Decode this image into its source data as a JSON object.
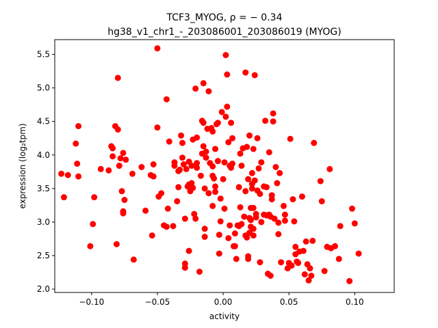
{
  "chart_data": {
    "type": "scatter",
    "title_line1": "TCF3_MYOG, ρ = − 0.34",
    "title_line2": "hg38_v1_chr1_-_203086001_203086019 (MYOG)",
    "xlabel": "activity",
    "ylabel": "expression (log₂tpm)",
    "xlim": [
      -0.128,
      0.13
    ],
    "ylim": [
      1.95,
      5.72
    ],
    "xticks": [
      -0.1,
      -0.05,
      0.0,
      0.05,
      0.1
    ],
    "xtick_labels": [
      "−0.10",
      "−0.05",
      "0.00",
      "0.05",
      "0.10"
    ],
    "yticks": [
      2.0,
      2.5,
      3.0,
      3.5,
      4.0,
      4.5,
      5.0,
      5.5
    ],
    "ytick_labels": [
      "2.0",
      "2.5",
      "3.0",
      "3.5",
      "4.0",
      "4.5",
      "5.0",
      "5.5"
    ],
    "marker_color": "#ff0000",
    "points": [
      [
        -0.123,
        3.72
      ],
      [
        -0.121,
        3.37
      ],
      [
        -0.118,
        3.7
      ],
      [
        -0.112,
        4.17
      ],
      [
        -0.111,
        3.87
      ],
      [
        -0.11,
        4.43
      ],
      [
        -0.11,
        3.68
      ],
      [
        -0.101,
        2.64
      ],
      [
        -0.099,
        2.97
      ],
      [
        -0.098,
        3.37
      ],
      [
        -0.093,
        3.79
      ],
      [
        -0.087,
        3.77
      ],
      [
        -0.085,
        4.13
      ],
      [
        -0.084,
        4.1
      ],
      [
        -0.084,
        3.98
      ],
      [
        -0.082,
        4.43
      ],
      [
        -0.081,
        2.67
      ],
      [
        -0.08,
        5.15
      ],
      [
        -0.08,
        4.38
      ],
      [
        -0.079,
        3.84
      ],
      [
        -0.078,
        3.95
      ],
      [
        -0.077,
        3.46
      ],
      [
        -0.076,
        4.03
      ],
      [
        -0.076,
        3.16
      ],
      [
        -0.076,
        3.13
      ],
      [
        -0.075,
        3.33
      ],
      [
        -0.074,
        3.93
      ],
      [
        -0.069,
        3.72
      ],
      [
        -0.068,
        2.44
      ],
      [
        -0.062,
        3.82
      ],
      [
        -0.059,
        3.17
      ],
      [
        -0.055,
        3.7
      ],
      [
        -0.054,
        2.8
      ],
      [
        -0.053,
        3.68
      ],
      [
        -0.053,
        3.86
      ],
      [
        -0.05,
        5.59
      ],
      [
        -0.05,
        4.41
      ],
      [
        -0.049,
        3.38
      ],
      [
        -0.047,
        3.43
      ],
      [
        -0.045,
        2.95
      ],
      [
        -0.043,
        4.83
      ],
      [
        -0.043,
        2.93
      ],
      [
        -0.042,
        3.2
      ],
      [
        -0.041,
        4.2
      ],
      [
        -0.038,
        2.94
      ],
      [
        -0.037,
        3.84
      ],
      [
        -0.037,
        3.89
      ],
      [
        -0.035,
        3.31
      ],
      [
        -0.034,
        3.76
      ],
      [
        -0.034,
        3.52
      ],
      [
        -0.033,
        3.78
      ],
      [
        -0.032,
        4.29
      ],
      [
        -0.031,
        4.18
      ],
      [
        -0.031,
        3.96
      ],
      [
        -0.03,
        3.86
      ],
      [
        -0.029,
        2.32
      ],
      [
        -0.029,
        2.38
      ],
      [
        -0.029,
        3.05
      ],
      [
        -0.028,
        3.79
      ],
      [
        -0.027,
        3.53
      ],
      [
        -0.026,
        3.9
      ],
      [
        -0.026,
        3.56
      ],
      [
        -0.026,
        2.57
      ],
      [
        -0.025,
        3.46
      ],
      [
        -0.024,
        3.58
      ],
      [
        -0.024,
        3.84
      ],
      [
        -0.023,
        4.23
      ],
      [
        -0.023,
        3.51
      ],
      [
        -0.022,
        3.12
      ],
      [
        -0.021,
        4.99
      ],
      [
        -0.021,
        3.05
      ],
      [
        -0.02,
        3.81
      ],
      [
        -0.02,
        4.26
      ],
      [
        -0.02,
        3.88
      ],
      [
        -0.018,
        2.26
      ],
      [
        -0.017,
        3.69
      ],
      [
        -0.016,
        4.02
      ],
      [
        -0.016,
        4.51
      ],
      [
        -0.015,
        5.07
      ],
      [
        -0.015,
        4.48
      ],
      [
        -0.015,
        4.13
      ],
      [
        -0.014,
        3.5
      ],
      [
        -0.014,
        2.78
      ],
      [
        -0.014,
        2.9
      ],
      [
        -0.013,
        3.96
      ],
      [
        -0.013,
        4.05
      ],
      [
        -0.012,
        4.39
      ],
      [
        -0.011,
        4.95
      ],
      [
        -0.011,
        3.43
      ],
      [
        -0.01,
        3.88
      ],
      [
        -0.009,
        4.4
      ],
      [
        -0.008,
        4.35
      ],
      [
        -0.008,
        3.83
      ],
      [
        -0.008,
        3.69
      ],
      [
        -0.008,
        3.24
      ],
      [
        -0.007,
        3.65
      ],
      [
        -0.006,
        3.45
      ],
      [
        -0.006,
        4.09
      ],
      [
        -0.006,
        3.53
      ],
      [
        -0.005,
        4.46
      ],
      [
        -0.004,
        4.48
      ],
      [
        -0.004,
        3.91
      ],
      [
        -0.003,
        2.53
      ],
      [
        -0.003,
        2.81
      ],
      [
        -0.002,
        3.01
      ],
      [
        -0.002,
        3.35
      ],
      [
        -0.001,
        4.64
      ],
      [
        0.0,
        3.64
      ],
      [
        0.001,
        3.89
      ],
      [
        0.001,
        3.2
      ],
      [
        0.002,
        5.49
      ],
      [
        0.002,
        4.57
      ],
      [
        0.003,
        5.2
      ],
      [
        0.003,
        4.72
      ],
      [
        0.004,
        4.19
      ],
      [
        0.004,
        2.76
      ],
      [
        0.005,
        3.84
      ],
      [
        0.005,
        2.95
      ],
      [
        0.006,
        4.48
      ],
      [
        0.006,
        3.81
      ],
      [
        0.007,
        4.25
      ],
      [
        0.007,
        3.87
      ],
      [
        0.008,
        2.64
      ],
      [
        0.009,
        2.83
      ],
      [
        0.009,
        2.64
      ],
      [
        0.01,
        2.45
      ],
      [
        0.011,
        2.95
      ],
      [
        0.012,
        3.52
      ],
      [
        0.012,
        2.94
      ],
      [
        0.013,
        4.02
      ],
      [
        0.013,
        3.22
      ],
      [
        0.014,
        3.84
      ],
      [
        0.014,
        2.97
      ],
      [
        0.015,
        4.1
      ],
      [
        0.016,
        3.08
      ],
      [
        0.017,
        5.23
      ],
      [
        0.017,
        3.46
      ],
      [
        0.017,
        2.8
      ],
      [
        0.018,
        4.12
      ],
      [
        0.018,
        2.77
      ],
      [
        0.019,
        2.45
      ],
      [
        0.019,
        2.49
      ],
      [
        0.019,
        3.64
      ],
      [
        0.02,
        4.29
      ],
      [
        0.02,
        3.06
      ],
      [
        0.02,
        2.84
      ],
      [
        0.021,
        3.03
      ],
      [
        0.021,
        2.93
      ],
      [
        0.021,
        3.21
      ],
      [
        0.022,
        3.57
      ],
      [
        0.022,
        3.73
      ],
      [
        0.022,
        3.5
      ],
      [
        0.023,
        4.09
      ],
      [
        0.023,
        3.21
      ],
      [
        0.023,
        2.9
      ],
      [
        0.023,
        2.8
      ],
      [
        0.024,
        5.19
      ],
      [
        0.024,
        3.62
      ],
      [
        0.025,
        3.12
      ],
      [
        0.025,
        3.07
      ],
      [
        0.026,
        4.25
      ],
      [
        0.026,
        3.47
      ],
      [
        0.027,
        3.8
      ],
      [
        0.028,
        3.42
      ],
      [
        0.028,
        2.4
      ],
      [
        0.029,
        3.89
      ],
      [
        0.029,
        3.0
      ],
      [
        0.031,
        3.53
      ],
      [
        0.031,
        3.11
      ],
      [
        0.032,
        4.51
      ],
      [
        0.033,
        3.52
      ],
      [
        0.033,
        3.1
      ],
      [
        0.034,
        2.23
      ],
      [
        0.035,
        4.04
      ],
      [
        0.035,
        3.11
      ],
      [
        0.036,
        3.08
      ],
      [
        0.036,
        2.2
      ],
      [
        0.037,
        3.4
      ],
      [
        0.037,
        3.34
      ],
      [
        0.038,
        4.62
      ],
      [
        0.038,
        4.5
      ],
      [
        0.039,
        3.05
      ],
      [
        0.04,
        3.82
      ],
      [
        0.041,
        3.58
      ],
      [
        0.042,
        2.99
      ],
      [
        0.042,
        2.82
      ],
      [
        0.043,
        3.73
      ],
      [
        0.044,
        2.4
      ],
      [
        0.046,
        3.24
      ],
      [
        0.047,
        3.11
      ],
      [
        0.047,
        3.02
      ],
      [
        0.049,
        2.31
      ],
      [
        0.05,
        2.39
      ],
      [
        0.051,
        4.24
      ],
      [
        0.052,
        2.35
      ],
      [
        0.053,
        3.34
      ],
      [
        0.054,
        3.01
      ],
      [
        0.055,
        2.63
      ],
      [
        0.055,
        2.52
      ],
      [
        0.056,
        2.41
      ],
      [
        0.057,
        2.39
      ],
      [
        0.058,
        2.56
      ],
      [
        0.06,
        3.38
      ],
      [
        0.061,
        2.57
      ],
      [
        0.062,
        2.22
      ],
      [
        0.063,
        2.71
      ],
      [
        0.064,
        2.37
      ],
      [
        0.065,
        2.13
      ],
      [
        0.066,
        2.31
      ],
      [
        0.067,
        2.2
      ],
      [
        0.068,
        2.72
      ],
      [
        0.069,
        4.18
      ],
      [
        0.074,
        3.61
      ],
      [
        0.075,
        3.31
      ],
      [
        0.077,
        2.27
      ],
      [
        0.079,
        2.63
      ],
      [
        0.081,
        3.79
      ],
      [
        0.082,
        2.61
      ],
      [
        0.085,
        2.64
      ],
      [
        0.088,
        2.45
      ],
      [
        0.089,
        2.94
      ],
      [
        0.096,
        2.12
      ],
      [
        0.098,
        3.2
      ],
      [
        0.1,
        2.98
      ],
      [
        0.103,
        2.53
      ]
    ]
  }
}
